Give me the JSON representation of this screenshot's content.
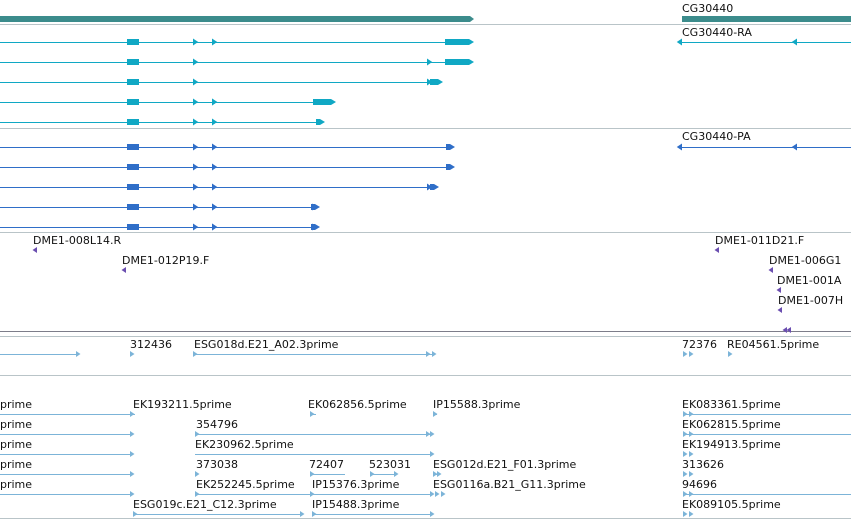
{
  "colors": {
    "background": "#ffffff",
    "separator": "#b9c4c8",
    "separator_dark": "#7d7d8a",
    "gene": "#3c8c8c",
    "transcript_cyan": "#10a8c4",
    "transcript_blue": "#2f6ec8",
    "oligo": "#6a4eb0",
    "est": "#7cb4d8",
    "label": "#111111"
  },
  "tracks": {
    "genes": {
      "name": "gene-track",
      "labels": [
        {
          "id": "gene-label",
          "text": "CG30440"
        }
      ]
    },
    "transcripts_cyan": {
      "name": "transcript-track-cyan",
      "labels": [
        {
          "id": "transcript-label-ra",
          "text": "CG30440-RA"
        }
      ]
    },
    "transcripts_blue": {
      "name": "transcript-track-blue",
      "labels": [
        {
          "id": "transcript-label-pa",
          "text": "CG30440-PA"
        }
      ]
    },
    "oligos": {
      "name": "oligo-track",
      "labels": [
        {
          "id": "oligo-label-1",
          "text": "DME1-008L14.R"
        },
        {
          "id": "oligo-label-2",
          "text": "DME1-011D21.F"
        },
        {
          "id": "oligo-label-3",
          "text": "DME1-012P19.F"
        },
        {
          "id": "oligo-label-4",
          "text": "DME1-006G1"
        },
        {
          "id": "oligo-label-5",
          "text": "DME1-001A"
        },
        {
          "id": "oligo-label-6",
          "text": "DME1-007H"
        }
      ]
    },
    "est_top": {
      "name": "est-track-top",
      "labels": [
        {
          "id": "est-label-312436",
          "text": "312436"
        },
        {
          "id": "est-label-esg018d",
          "text": "ESG018d.E21_A02.3prime"
        },
        {
          "id": "est-label-72376",
          "text": "72376"
        },
        {
          "id": "est-label-re04561",
          "text": "RE04561.5prime"
        }
      ]
    },
    "est_bottom": {
      "name": "est-track-bottom",
      "labels": [
        {
          "id": "est-label-prime-1",
          "text": "prime"
        },
        {
          "id": "est-label-ek193211",
          "text": "EK193211.5prime"
        },
        {
          "id": "est-label-ek062856",
          "text": "EK062856.5prime"
        },
        {
          "id": "est-label-ip15588",
          "text": "IP15588.3prime"
        },
        {
          "id": "est-label-ek083361",
          "text": "EK083361.5prime"
        },
        {
          "id": "est-label-prime-2",
          "text": "prime"
        },
        {
          "id": "est-label-354796",
          "text": "354796"
        },
        {
          "id": "est-label-ek062815",
          "text": "EK062815.5prime"
        },
        {
          "id": "est-label-prime-3",
          "text": "prime"
        },
        {
          "id": "est-label-ek230962",
          "text": "EK230962.5prime"
        },
        {
          "id": "est-label-ek194913",
          "text": "EK194913.5prime"
        },
        {
          "id": "est-label-prime-4",
          "text": "prime"
        },
        {
          "id": "est-label-373038",
          "text": "373038"
        },
        {
          "id": "est-label-72407",
          "text": "72407"
        },
        {
          "id": "est-label-523031",
          "text": "523031"
        },
        {
          "id": "est-label-esg012d",
          "text": "ESG012d.E21_F01.3prime"
        },
        {
          "id": "est-label-313626",
          "text": "313626"
        },
        {
          "id": "est-label-prime-5",
          "text": "prime"
        },
        {
          "id": "est-label-ek252245",
          "text": "EK252245.5prime"
        },
        {
          "id": "est-label-ip15376",
          "text": "IP15376.3prime"
        },
        {
          "id": "est-label-esg0116a",
          "text": "ESG0116a.B21_G11.3prime"
        },
        {
          "id": "est-label-94696",
          "text": "94696"
        },
        {
          "id": "est-label-esg019c",
          "text": "ESG019c.E21_C12.3prime"
        },
        {
          "id": "est-label-ip15488",
          "text": "IP15488.3prime"
        },
        {
          "id": "est-label-ek089105",
          "text": "EK089105.5prime"
        }
      ]
    }
  }
}
